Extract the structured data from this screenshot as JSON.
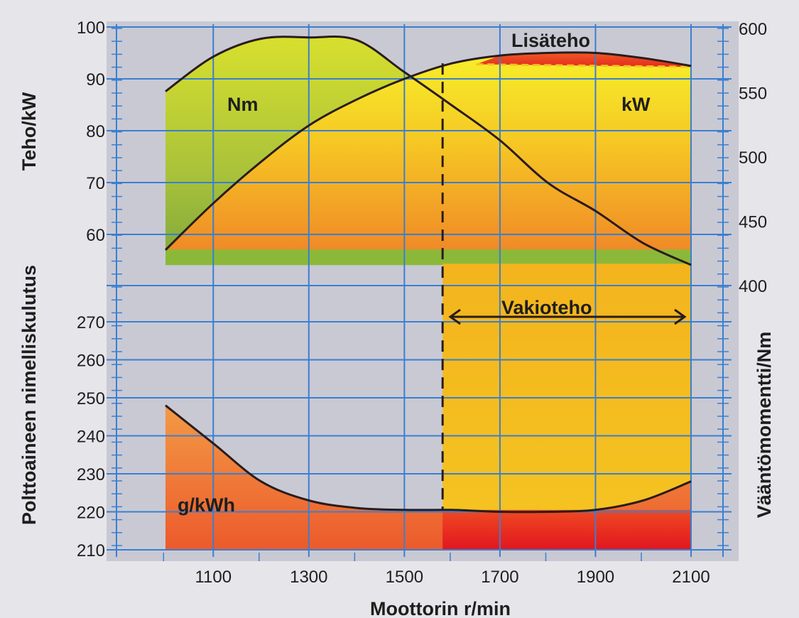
{
  "chart_data": {
    "type": "line",
    "xlabel": "Moottorin r/min",
    "x_ticks": [
      1100,
      1300,
      1500,
      1700,
      1900,
      2100
    ],
    "xlim": [
      900,
      2100
    ],
    "left_top_axis": {
      "label": "Teho/kW",
      "ticks": [
        100,
        90,
        80,
        70,
        60
      ],
      "ylim": [
        55,
        100
      ]
    },
    "left_bottom_axis": {
      "label": "Polttoaineen nimelliskulutus",
      "ticks": [
        270,
        260,
        250,
        240,
        230,
        220,
        210
      ],
      "ylim": [
        210,
        276
      ]
    },
    "right_axis": {
      "label": "Vääntömomentti/Nm",
      "ticks": [
        600,
        550,
        500,
        450,
        400
      ],
      "ylim": [
        380,
        600
      ]
    },
    "series": [
      {
        "name": "Nm",
        "axis": "right",
        "x": [
          1000,
          1100,
          1200,
          1300,
          1400,
          1500,
          1600,
          1700,
          1800,
          1900,
          2000,
          2100
        ],
        "values": [
          551,
          578,
          592,
          593,
          591,
          566,
          540,
          513,
          480,
          458,
          433,
          416
        ]
      },
      {
        "name": "kW",
        "axis": "left_top",
        "x": [
          1000,
          1100,
          1200,
          1300,
          1400,
          1500,
          1600,
          1700,
          1800,
          1900,
          2000,
          2100
        ],
        "values": [
          57,
          66,
          74,
          81,
          86,
          90,
          93,
          94.5,
          95,
          95,
          94,
          92.5
        ]
      },
      {
        "name": "g/kWh",
        "axis": "left_bottom",
        "x": [
          1000,
          1100,
          1200,
          1300,
          1400,
          1500,
          1600,
          1700,
          1800,
          1900,
          2000,
          2100
        ],
        "values": [
          248,
          238,
          228,
          223,
          221,
          220.5,
          220.5,
          220,
          220,
          220.5,
          223,
          228
        ]
      }
    ],
    "annotations": {
      "lisateho": "Lisäteho",
      "vakioteho": "Vakioteho",
      "constant_power_start_rpm": 1580
    },
    "grid": true
  },
  "colors": {
    "grid": "#3a7fd0",
    "background": "#e6e6ea",
    "panel": "#c9c9d4",
    "yellow": "#f5ec2a",
    "orange": "#f3b21d",
    "orange_red": "#ef6e25",
    "red": "#e5161d",
    "green": "#8cb83a",
    "curve": "#2a1c1c"
  }
}
